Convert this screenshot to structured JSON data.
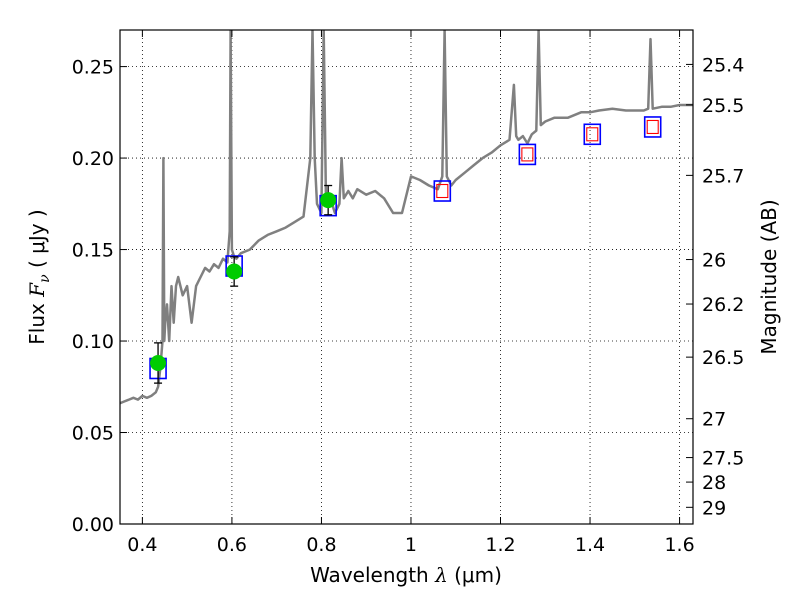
{
  "chart_data": {
    "type": "line",
    "xlabel": "Wavelength  λ (μm)",
    "xlabel_parts": {
      "prefix": "Wavelength  ",
      "symbol": "λ",
      "unit": " (μm)"
    },
    "ylabel_parts": {
      "prefix": "Flux  ",
      "symbol": "F",
      "subscript": "ν",
      "unit": "  ( μJy )"
    },
    "y2label": "Magnitude (AB)",
    "xlim": [
      0.35,
      1.63
    ],
    "ylim": [
      0.0,
      0.27
    ],
    "grid": true,
    "x_ticks": [
      0.4,
      0.6,
      0.8,
      1.0,
      1.2,
      1.4,
      1.6
    ],
    "x_tick_labels": [
      "0.4",
      "0.6",
      "0.8",
      "1",
      "1.2",
      "1.4",
      "1.6"
    ],
    "y_ticks": [
      0.0,
      0.05,
      0.1,
      0.15,
      0.2,
      0.25
    ],
    "y_tick_labels": [
      "0.00",
      "0.05",
      "0.10",
      "0.15",
      "0.20",
      "0.25"
    ],
    "y2_ticks": [
      "25.4",
      "25.5",
      "25.7",
      "26",
      "26.2",
      "26.5",
      "27",
      "27.5",
      "28",
      "29"
    ],
    "colors": {
      "model": "#808080",
      "observed": "#00cc00",
      "band_box": "#0000ff",
      "model_box": "#ff0000",
      "error": "#000000"
    },
    "series": [
      {
        "style": "model-sed-line",
        "x": [
          0.35,
          0.36,
          0.37,
          0.38,
          0.39,
          0.4,
          0.41,
          0.42,
          0.43,
          0.435,
          0.44,
          0.445,
          0.447,
          0.449,
          0.451,
          0.455,
          0.46,
          0.465,
          0.47,
          0.475,
          0.48,
          0.49,
          0.5,
          0.51,
          0.52,
          0.53,
          0.54,
          0.55,
          0.56,
          0.57,
          0.58,
          0.59,
          0.595,
          0.597,
          0.6,
          0.605,
          0.61,
          0.62,
          0.64,
          0.66,
          0.68,
          0.7,
          0.72,
          0.74,
          0.76,
          0.775,
          0.78,
          0.785,
          0.79,
          0.8,
          0.805,
          0.81,
          0.815,
          0.82,
          0.83,
          0.84,
          0.845,
          0.85,
          0.86,
          0.87,
          0.88,
          0.9,
          0.92,
          0.94,
          0.96,
          0.98,
          1.0,
          1.02,
          1.04,
          1.06,
          1.07,
          1.075,
          1.08,
          1.09,
          1.1,
          1.12,
          1.14,
          1.16,
          1.18,
          1.2,
          1.22,
          1.23,
          1.235,
          1.24,
          1.25,
          1.26,
          1.27,
          1.28,
          1.285,
          1.29,
          1.3,
          1.32,
          1.35,
          1.38,
          1.4,
          1.42,
          1.45,
          1.48,
          1.5,
          1.52,
          1.53,
          1.535,
          1.54,
          1.56,
          1.58,
          1.6,
          1.63
        ],
        "y": [
          0.066,
          0.067,
          0.068,
          0.069,
          0.068,
          0.07,
          0.069,
          0.07,
          0.072,
          0.075,
          0.085,
          0.1,
          0.2,
          0.1,
          0.11,
          0.12,
          0.1,
          0.13,
          0.11,
          0.13,
          0.135,
          0.125,
          0.13,
          0.11,
          0.13,
          0.135,
          0.14,
          0.138,
          0.142,
          0.14,
          0.145,
          0.143,
          0.16,
          0.27,
          0.15,
          0.146,
          0.145,
          0.148,
          0.15,
          0.155,
          0.158,
          0.16,
          0.162,
          0.165,
          0.168,
          0.2,
          0.27,
          0.2,
          0.175,
          0.17,
          0.27,
          0.18,
          0.175,
          0.178,
          0.17,
          0.175,
          0.2,
          0.178,
          0.182,
          0.178,
          0.183,
          0.18,
          0.182,
          0.178,
          0.17,
          0.17,
          0.19,
          0.188,
          0.185,
          0.183,
          0.19,
          0.27,
          0.19,
          0.185,
          0.188,
          0.192,
          0.196,
          0.2,
          0.203,
          0.207,
          0.21,
          0.24,
          0.212,
          0.21,
          0.212,
          0.208,
          0.213,
          0.215,
          0.27,
          0.218,
          0.22,
          0.222,
          0.222,
          0.225,
          0.225,
          0.226,
          0.227,
          0.226,
          0.226,
          0.226,
          0.227,
          0.265,
          0.227,
          0.228,
          0.228,
          0.229,
          0.229
        ]
      },
      {
        "style": "observed-points",
        "x": [
          0.435,
          0.605,
          0.815
        ],
        "y": [
          0.088,
          0.138,
          0.177
        ],
        "yerr": [
          0.011,
          0.008,
          0.008
        ]
      },
      {
        "style": "band-boxes",
        "x": [
          0.435,
          0.605,
          0.815,
          1.07,
          1.26,
          1.405,
          1.54
        ],
        "y": [
          0.085,
          0.141,
          0.174,
          0.182,
          0.202,
          0.213,
          0.217
        ]
      },
      {
        "style": "model-boxes",
        "x": [
          1.07,
          1.26,
          1.405,
          1.54
        ],
        "y": [
          0.182,
          0.202,
          0.213,
          0.217
        ]
      }
    ]
  }
}
